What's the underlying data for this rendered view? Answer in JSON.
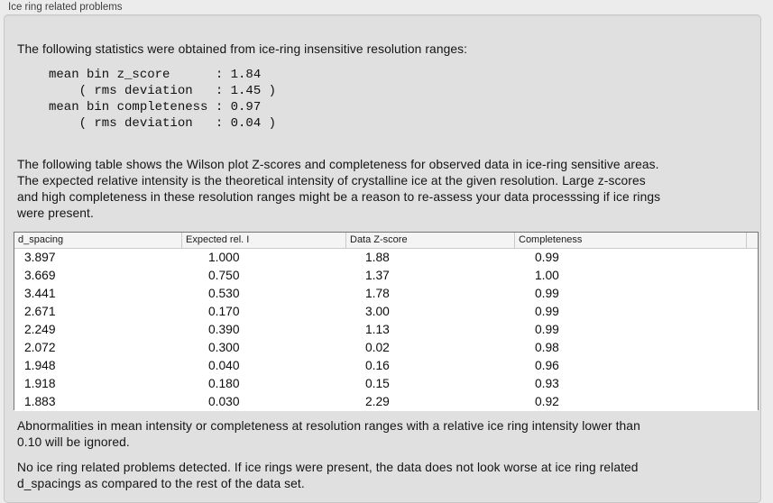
{
  "panel": {
    "title": "Ice ring related problems"
  },
  "intro": "The following statistics were obtained from ice-ring insensitive resolution ranges:",
  "stats_block": "mean bin z_score      : 1.84\n    ( rms deviation   : 1.45 )\nmean bin completeness : 0.97\n    ( rms deviation   : 0.04 )",
  "table_intro": "The following table shows the Wilson plot Z-scores and completeness for observed data in ice-ring sensitive areas.\nThe expected relative intensity is the theoretical intensity of crystalline ice at the given resolution. Large z-scores\nand high completeness in these resolution ranges might be a reason to re-assess your data processsing if ice rings\nwere present.",
  "table": {
    "columns": [
      "d_spacing",
      "Expected rel. I",
      "Data Z-score",
      "Completeness"
    ],
    "rows": [
      [
        "3.897",
        "1.000",
        "1.88",
        "0.99"
      ],
      [
        "3.669",
        "0.750",
        "1.37",
        "1.00"
      ],
      [
        "3.441",
        "0.530",
        "1.78",
        "0.99"
      ],
      [
        "2.671",
        "0.170",
        "3.00",
        "0.99"
      ],
      [
        "2.249",
        "0.390",
        "1.13",
        "0.99"
      ],
      [
        "2.072",
        "0.300",
        "0.02",
        "0.98"
      ],
      [
        "1.948",
        "0.040",
        "0.16",
        "0.96"
      ],
      [
        "1.918",
        "0.180",
        "0.15",
        "0.93"
      ],
      [
        "1.883",
        "0.030",
        "2.29",
        "0.92"
      ]
    ]
  },
  "note_ignore": "Abnormalities in mean intensity or completeness at resolution ranges with a relative ice ring intensity lower than\n0.10 will be ignored.",
  "conclusion": "No ice ring related problems detected. If ice rings were present, the data does not look worse at ice ring related\nd_spacings as compared to the rest of the data set.",
  "colors": {
    "outer_background": "#ececec",
    "panel_background": "#e0e0e0",
    "panel_border": "#c7c7c7",
    "table_border": "#757575",
    "table_header_background": "#f4f4f4",
    "text": "#141414"
  }
}
